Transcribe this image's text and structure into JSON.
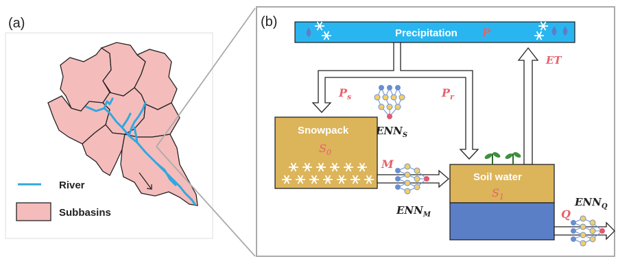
{
  "panel_a": {
    "label": "(a)",
    "legend": {
      "river": "River",
      "subbasins": "Subbasins"
    }
  },
  "panel_b": {
    "label": "(b)",
    "precipitation": {
      "text": "Precipitation",
      "symbol": "P"
    },
    "et": "ET",
    "snowpack": {
      "text": "Snowpack",
      "state_base": "S",
      "state_sub": "0"
    },
    "soil_water": {
      "text": "Soil water",
      "state_base": "S",
      "state_sub": "1"
    },
    "flux_snow": {
      "base": "P",
      "sub": "s"
    },
    "flux_rain": {
      "base": "P",
      "sub": "r"
    },
    "melt": "M",
    "discharge": "Q",
    "enn_s": {
      "base": "ENN",
      "sub": "S"
    },
    "enn_m": {
      "base": "ENN",
      "sub": "M"
    },
    "enn_q": {
      "base": "ENN",
      "sub": "Q"
    }
  },
  "colors": {
    "precip_bar": "#29b6f0",
    "snowpack_fill": "#dcb45a",
    "soil_top": "#dcb45a",
    "soil_bottom": "#5b7fc7",
    "subbasin_fill": "#f5bcbc",
    "river": "#2ea8e0",
    "flux_text": "#e8606a",
    "nn_node_blue": "#6a8fd0",
    "nn_node_yellow": "#f2cf6a",
    "nn_node_red": "#e05a70"
  }
}
